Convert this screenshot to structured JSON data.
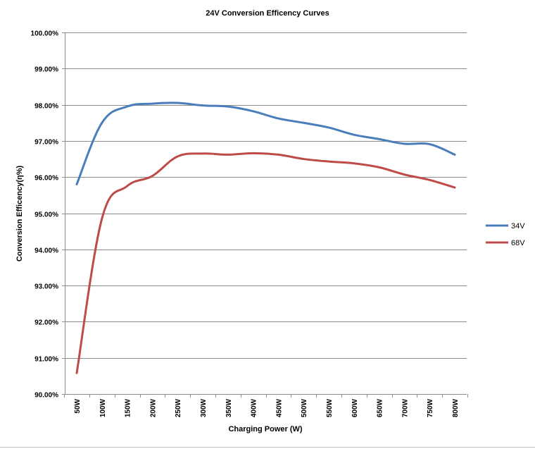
{
  "chart_data": {
    "type": "line",
    "title": "24V  Conversion Efficency Curves",
    "xlabel": "Charging  Power  (W)",
    "ylabel": "Conversion Efficency(η%)",
    "categories": [
      "50W",
      "100W",
      "150W",
      "200W",
      "250W",
      "300W",
      "350W",
      "400W",
      "450W",
      "500W",
      "550W",
      "600W",
      "650W",
      "700W",
      "750W",
      "800W"
    ],
    "y_tick_labels": [
      "90.00%",
      "91.00%",
      "92.00%",
      "93.00%",
      "94.00%",
      "95.00%",
      "96.00%",
      "97.00%",
      "98.00%",
      "99.00%",
      "100.00%"
    ],
    "ylim": [
      90,
      100
    ],
    "y_unit": "%",
    "grid": true,
    "legend_position": "right",
    "series": [
      {
        "name": "34V",
        "color": "#4a7ebb",
        "values": [
          95.8,
          97.5,
          97.95,
          98.03,
          98.05,
          97.98,
          97.95,
          97.82,
          97.62,
          97.5,
          97.37,
          97.17,
          97.05,
          96.92,
          96.91,
          96.62
        ]
      },
      {
        "name": "68V",
        "color": "#be4b48",
        "values": [
          90.58,
          94.85,
          95.75,
          96.03,
          96.57,
          96.65,
          96.62,
          96.66,
          96.62,
          96.5,
          96.43,
          96.38,
          96.27,
          96.07,
          95.92,
          95.71
        ]
      }
    ]
  }
}
